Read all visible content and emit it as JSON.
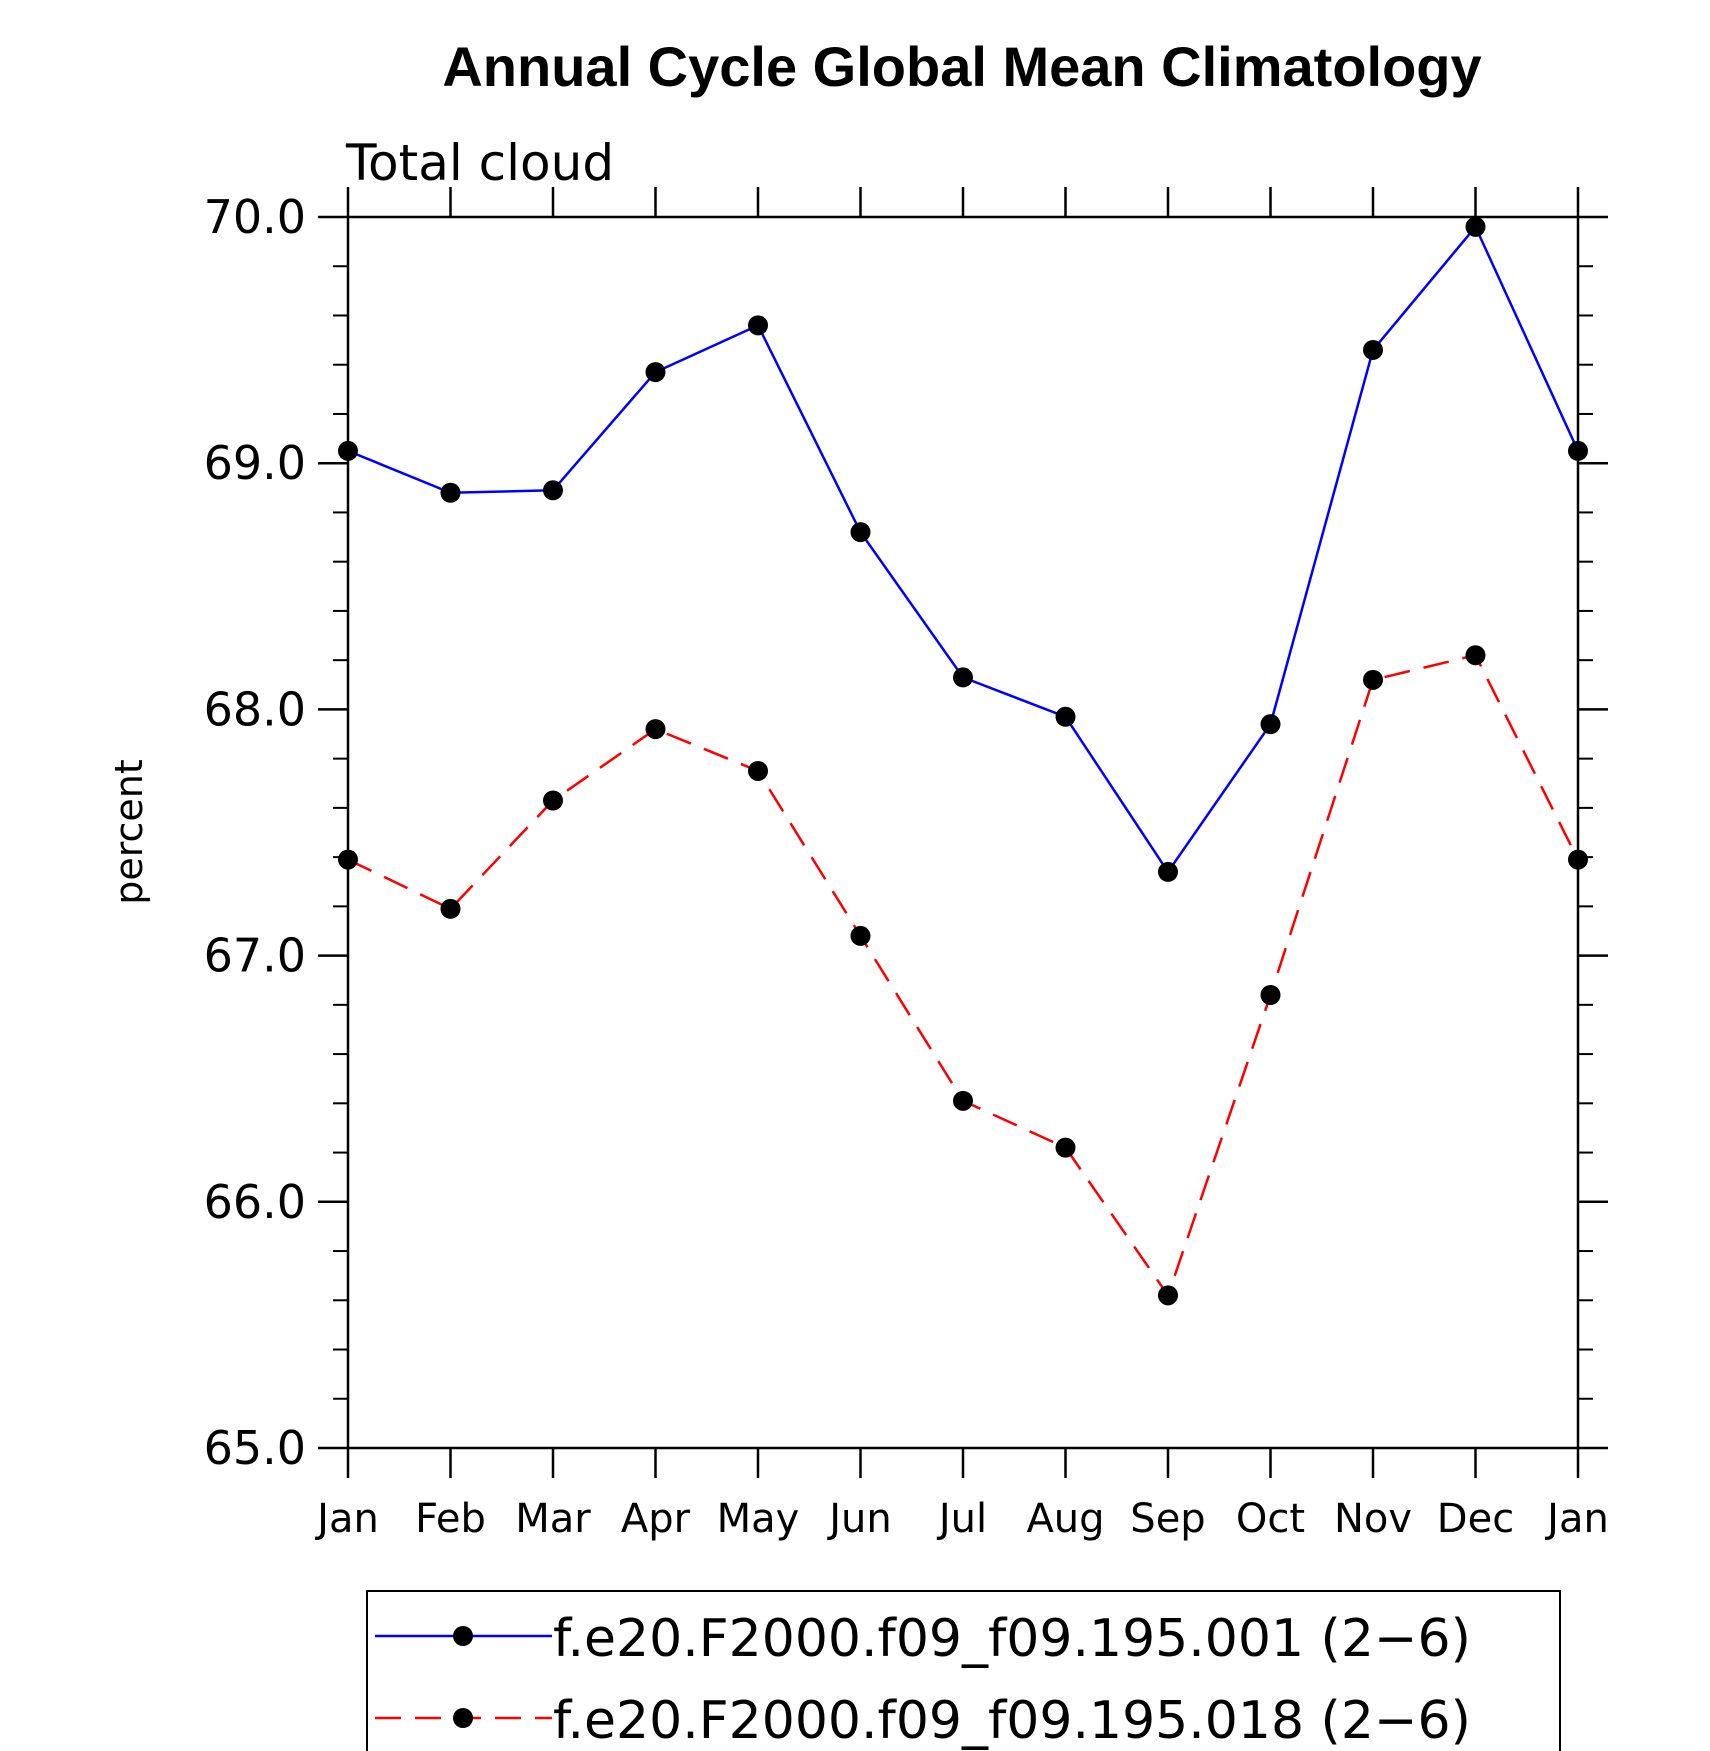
{
  "chart_data": {
    "type": "line",
    "title": "Annual Cycle Global Mean Climatology",
    "subtitle": "Total cloud",
    "xlabel": "",
    "ylabel": "percent",
    "categories": [
      "Jan",
      "Feb",
      "Mar",
      "Apr",
      "May",
      "Jun",
      "Jul",
      "Aug",
      "Sep",
      "Oct",
      "Nov",
      "Dec",
      "Jan"
    ],
    "ylim": [
      65.0,
      70.0
    ],
    "yticks": [
      "65.0",
      "66.0",
      "67.0",
      "68.0",
      "69.0",
      "70.0"
    ],
    "grid": false,
    "legend_position": "bottom",
    "series": [
      {
        "name": "f.e20.F2000.f09_f09.195.001 (2−6)",
        "color": "#0000ff",
        "dash": "solid",
        "values": [
          69.05,
          68.88,
          68.89,
          69.37,
          69.56,
          68.72,
          68.13,
          67.97,
          67.34,
          67.94,
          69.46,
          69.96,
          69.05
        ]
      },
      {
        "name": "f.e20.F2000.f09_f09.195.018 (2−6)",
        "color": "#ff0000",
        "dash": "dashed",
        "values": [
          67.39,
          67.19,
          67.63,
          67.92,
          67.75,
          67.08,
          66.41,
          66.22,
          65.62,
          66.84,
          68.12,
          68.22,
          67.39
        ]
      }
    ]
  }
}
